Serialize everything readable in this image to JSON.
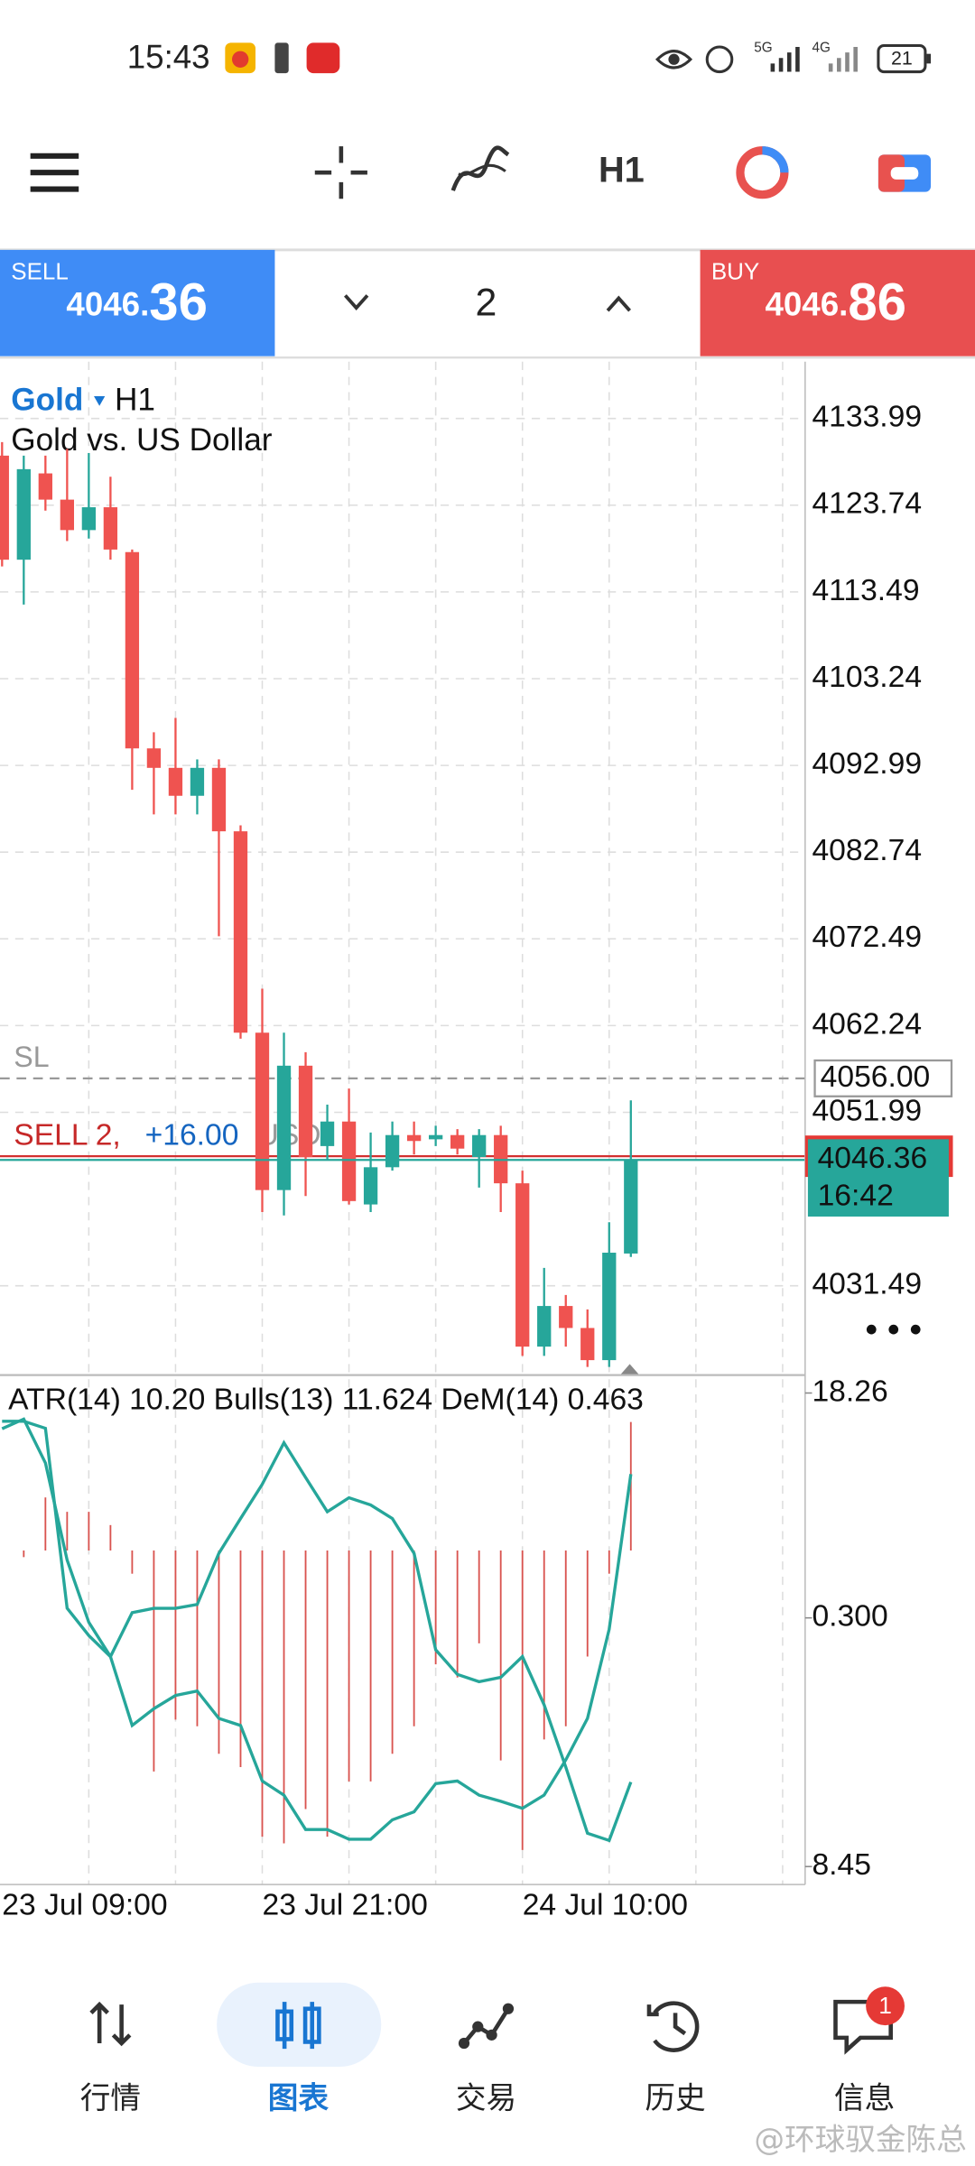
{
  "status_bar": {
    "time": "15:43",
    "network_1": "5G",
    "network_2": "4G",
    "battery": "21"
  },
  "toolbar": {
    "timeframe": "H1"
  },
  "trade_panel": {
    "sell": {
      "label": "SELL",
      "price_main": "4046.",
      "price_pips": "36"
    },
    "volume": "2",
    "buy": {
      "label": "BUY",
      "price_main": "4046.",
      "price_pips": "86"
    }
  },
  "chart_data": {
    "type": "candlestick",
    "symbol": "Gold",
    "timeframe": "H1",
    "description": "Gold vs. US Dollar",
    "categories": [
      "23 Jul 09:00",
      null,
      null,
      null,
      null,
      null,
      null,
      null,
      null,
      null,
      null,
      null,
      "23 Jul 21:00",
      null,
      null,
      null,
      null,
      null,
      null,
      null,
      null,
      null,
      null,
      null,
      "24 Jul 10:00",
      null,
      null,
      null,
      null,
      null
    ],
    "open": [
      4129.6,
      4117.3,
      4127.5,
      4124.4,
      4120.8,
      4123.5,
      4118.2,
      4095.0,
      4092.7,
      4089.4,
      4092.7,
      4085.2,
      4061.4,
      4042.8,
      4057.5,
      4048.0,
      4050.9,
      4041.1,
      4045.5,
      4049.3,
      4048.8,
      4049.3,
      4046.7,
      4049.3,
      4043.6,
      4024.3,
      4029.1,
      4026.5,
      4022.7,
      4035.3
    ],
    "high": [
      4131.2,
      4129.6,
      4129.6,
      4130.4,
      4129.9,
      4127.1,
      4118.5,
      4096.9,
      4098.6,
      4093.7,
      4093.7,
      4085.9,
      4066.6,
      4061.4,
      4059.1,
      4052.9,
      4054.8,
      4049.6,
      4050.9,
      4050.9,
      4050.4,
      4050.0,
      4050.0,
      4050.4,
      4045.1,
      4033.6,
      4030.4,
      4028.7,
      4039.0,
      4053.4
    ],
    "low": [
      4116.5,
      4112.0,
      4123.1,
      4119.5,
      4119.8,
      4117.3,
      4090.1,
      4087.2,
      4087.2,
      4087.2,
      4072.8,
      4060.7,
      4040.2,
      4039.8,
      4042.1,
      4046.4,
      4041.1,
      4040.2,
      4045.1,
      4047.0,
      4048.0,
      4047.0,
      4043.1,
      4040.2,
      4023.2,
      4023.2,
      4024.3,
      4021.9,
      4021.9,
      4034.9
    ],
    "close": [
      4117.3,
      4128.0,
      4124.4,
      4120.8,
      4123.5,
      4118.5,
      4095.0,
      4092.7,
      4089.4,
      4092.7,
      4085.2,
      4061.4,
      4042.8,
      4057.5,
      4046.7,
      4050.9,
      4041.5,
      4045.5,
      4049.3,
      4048.6,
      4049.3,
      4047.7,
      4049.3,
      4043.6,
      4024.3,
      4029.1,
      4026.5,
      4022.7,
      4035.4,
      4046.36
    ],
    "up_color": "#26a69a",
    "down_color": "#ef5350",
    "ylim": [
      4021.1,
      4140.7
    ],
    "yticks": [
      4133.99,
      4123.74,
      4113.49,
      4103.24,
      4092.99,
      4082.74,
      4072.49,
      4062.24,
      4051.99,
      4031.49
    ],
    "grid": true,
    "stop_loss": {
      "name": "SL",
      "value": 4056,
      "label": "4056.00"
    },
    "position": {
      "label": "SELL 2,",
      "profit": "+16.00",
      "currency": "USD",
      "price": 4046.8
    },
    "bid": {
      "value": 4046.36,
      "countdown": "16:42"
    },
    "indicators": {
      "label": "ATR(14) 10.20 Bulls(13) 11.624 DeM(14) 0.463",
      "atr": {
        "color": "#26a69a",
        "ylim": [
          8.45,
          18.26
        ],
        "yticks": [
          18.26,
          8.45
        ],
        "values": [
          17.52,
          17.72,
          16.81,
          14.8,
          13.51,
          12.8,
          13.71,
          13.8,
          13.8,
          13.88,
          14.94,
          15.66,
          16.37,
          17.23,
          16.51,
          15.8,
          16.09,
          15.94,
          15.66,
          14.94,
          12.94,
          12.43,
          12.28,
          12.37,
          12.8,
          11.8,
          10.51,
          9.14,
          8.99,
          10.2
        ]
      },
      "bulls": {
        "color": "#d9534f",
        "ylim": [
          -28.6,
          14.25
        ],
        "values": [
          null,
          -0.6,
          4.8,
          3.5,
          3.5,
          2.3,
          -2.1,
          -20.0,
          -15.3,
          -15.9,
          -18.4,
          -19.6,
          -25.9,
          -26.5,
          -23.4,
          -25.9,
          -20.9,
          -20.9,
          -18.4,
          -15.9,
          -10.3,
          -11.5,
          -8.4,
          -19.0,
          -27.1,
          -17.1,
          -15.9,
          -9.6,
          -2.1,
          11.624
        ]
      },
      "dem": {
        "color": "#26a69a",
        "ylim": [
          0.018,
          0.555
        ],
        "yticks": [
          {
            "value": 0.3,
            "label": "0.300"
          }
        ],
        "values": [
          0.523,
          0.523,
          0.515,
          0.311,
          0.28,
          0.256,
          0.178,
          0.197,
          0.212,
          0.217,
          0.186,
          0.178,
          0.115,
          0.099,
          0.06,
          0.06,
          0.049,
          0.049,
          0.071,
          0.08,
          0.112,
          0.115,
          0.099,
          0.092,
          0.084,
          0.099,
          0.139,
          0.186,
          0.287,
          0.463
        ]
      }
    }
  },
  "nav": {
    "selected": 1,
    "badge": "1",
    "items": [
      "行情",
      "图表",
      "交易",
      "历史",
      "信息"
    ]
  },
  "watermark": "@环球驭金陈总"
}
